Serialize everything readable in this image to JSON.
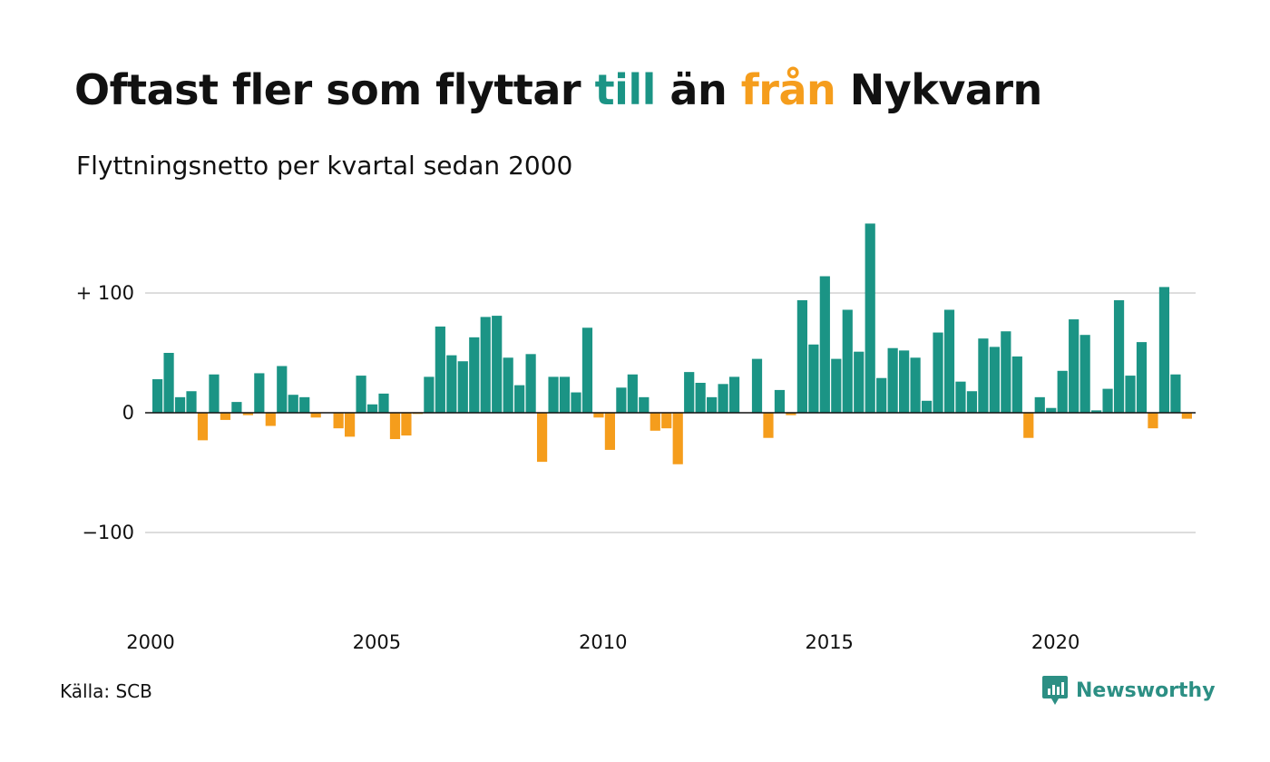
{
  "title": {
    "part1": "Oftast fler som flyttar ",
    "word_to": "till",
    "part2": " än ",
    "word_from": "från",
    "part3": " Nykvarn"
  },
  "subtitle": "Flyttningsnetto per kvartal sedan 2000",
  "source": "Källa: SCB",
  "brand": {
    "name": "Newsworthy",
    "color": "#2c8f84"
  },
  "colors": {
    "positive": "#1b9485",
    "negative": "#f59d1c",
    "grid": "#dddddd",
    "zero_line": "#111111"
  },
  "chart_data": {
    "type": "bar",
    "title": "Oftast fler som flyttar till än från Nykvarn",
    "subtitle": "Flyttningsnetto per kvartal sedan 2000",
    "x_start_year": 2000,
    "periods_per_year": 4,
    "ylim": [
      -160,
      160
    ],
    "yticks": [
      {
        "value": 100,
        "label": "+ 100"
      },
      {
        "value": 0,
        "label": "0"
      },
      {
        "value": -100,
        "label": "−100"
      }
    ],
    "xticks": [
      "2000",
      "2005",
      "2010",
      "2015",
      "2020"
    ],
    "values": [
      28,
      50,
      13,
      18,
      -23,
      32,
      -6,
      9,
      -2,
      33,
      -11,
      39,
      15,
      13,
      -4,
      0,
      -13,
      -20,
      31,
      7,
      16,
      -22,
      -19,
      -1,
      30,
      72,
      48,
      43,
      63,
      80,
      81,
      46,
      23,
      49,
      -41,
      30,
      30,
      17,
      71,
      -4,
      -31,
      21,
      32,
      13,
      -15,
      -13,
      -43,
      34,
      25,
      13,
      24,
      30,
      0,
      45,
      -21,
      19,
      -2,
      94,
      57,
      114,
      45,
      86,
      51,
      158,
      29,
      54,
      52,
      46,
      10,
      67,
      86,
      26,
      18,
      62,
      55,
      68,
      47,
      -21,
      13,
      4,
      35,
      78,
      65,
      2,
      20,
      94,
      31,
      59,
      -13,
      105,
      32,
      -5
    ],
    "grid": true,
    "legend": "none"
  }
}
